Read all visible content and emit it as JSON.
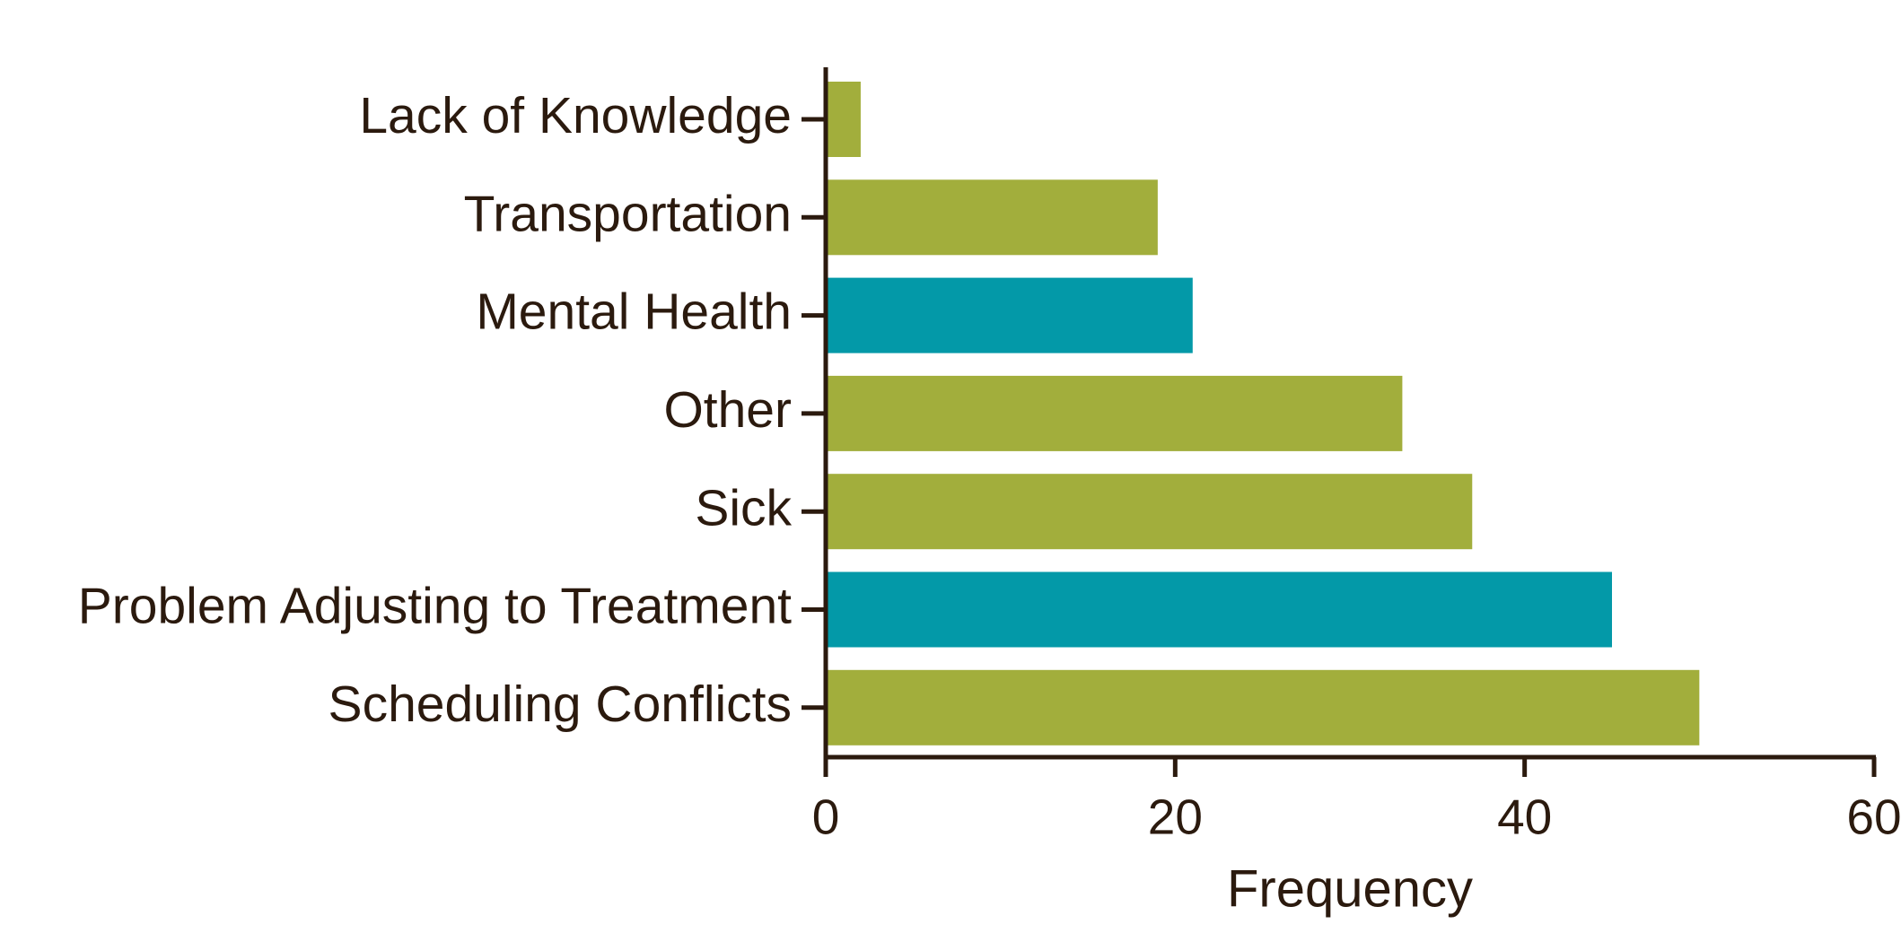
{
  "chart_data": {
    "type": "barh",
    "categories": [
      "Lack of Knowledge",
      "Transportation",
      "Mental Health",
      "Other",
      "Sick",
      "Problem Adjusting to Treatment",
      "Scheduling Conflicts"
    ],
    "values": [
      2,
      19,
      21,
      33,
      37,
      45,
      50
    ],
    "colors": [
      "#a2ae3c",
      "#a2ae3c",
      "#0399a8",
      "#a2ae3c",
      "#a2ae3c",
      "#0399a8",
      "#a2ae3c"
    ],
    "xlabel": "Frequency",
    "xlim": [
      0,
      60
    ],
    "xticks": [
      0,
      20,
      40,
      60
    ],
    "grid": false
  }
}
